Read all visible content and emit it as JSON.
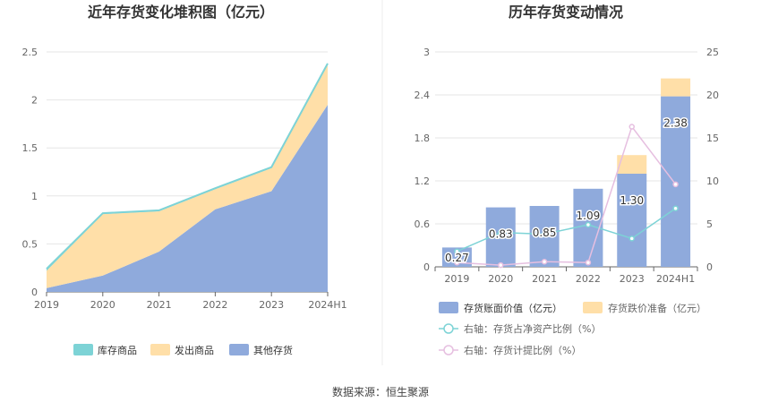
{
  "source_text": "数据来源：恒生聚源",
  "chart_data": [
    {
      "type": "area",
      "title": "近年存货变化堆积图（亿元）",
      "categories": [
        "2019",
        "2020",
        "2021",
        "2022",
        "2023",
        "2024H1"
      ],
      "ylim": [
        0,
        2.5
      ],
      "yticks": [
        "0",
        "0.5",
        "1",
        "1.5",
        "2",
        "2.5"
      ],
      "stacked": true,
      "grid": true,
      "legend_position": "bottom",
      "series": [
        {
          "name": "其他存货",
          "color": "#8faadc",
          "values": [
            0.04,
            0.17,
            0.42,
            0.86,
            1.05,
            1.95
          ]
        },
        {
          "name": "发出商品",
          "color": "#ffdfa8",
          "values": [
            0.18,
            0.64,
            0.42,
            0.21,
            0.24,
            0.42
          ]
        },
        {
          "name": "库存商品",
          "color": "#7dd3d6",
          "values": [
            0.02,
            0.01,
            0.01,
            0.01,
            0.01,
            0.01
          ]
        }
      ],
      "legend": [
        {
          "name": "库存商品",
          "color": "#7dd3d6"
        },
        {
          "name": "发出商品",
          "color": "#ffdfa8"
        },
        {
          "name": "其他存货",
          "color": "#8faadc"
        }
      ]
    },
    {
      "type": "bar",
      "title": "历年存货变动情况",
      "categories": [
        "2019",
        "2020",
        "2021",
        "2022",
        "2023",
        "2024H1"
      ],
      "ylim": [
        0,
        3
      ],
      "yticks": [
        "0",
        "0.6",
        "1.2",
        "1.8",
        "2.4",
        "3"
      ],
      "y2lim": [
        0,
        25
      ],
      "y2ticks": [
        "0",
        "5",
        "10",
        "15",
        "20",
        "25"
      ],
      "grid": true,
      "legend_position": "bottom",
      "bars": [
        {
          "name": "存货账面价值（亿元）",
          "color": "#8faadc",
          "values": [
            0.27,
            0.83,
            0.85,
            1.09,
            1.3,
            2.38
          ],
          "labels": [
            "0.27",
            "0.83",
            "0.85",
            "1.09",
            "1.30",
            "2.38"
          ]
        },
        {
          "name": "存货跌价准备（亿元）",
          "color": "#ffdfa8",
          "values": [
            0.0,
            0.0,
            0.0,
            0.0,
            0.26,
            0.25
          ]
        }
      ],
      "lines": [
        {
          "name": "右轴：存货占净资产比例（%）",
          "color": "#7dd3d6",
          "values": [
            1.8,
            4.0,
            3.8,
            4.9,
            3.3,
            6.8
          ]
        },
        {
          "name": "右轴：存货计提比例（%）",
          "color": "#e6bfe0",
          "values": [
            0.5,
            0.2,
            0.6,
            0.5,
            16.3,
            9.6
          ]
        }
      ]
    }
  ]
}
